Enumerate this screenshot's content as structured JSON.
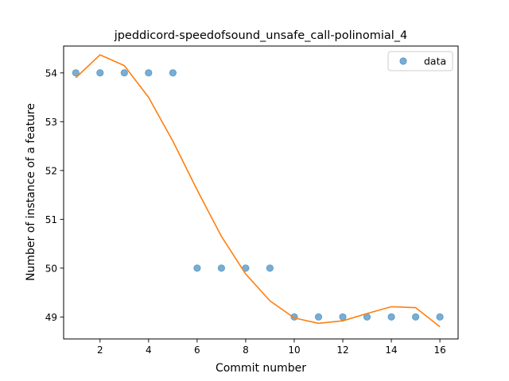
{
  "chart_data": {
    "type": "scatter",
    "title": "jpeddicord-speedofsound_unsafe_call-polinomial_4",
    "xlabel": "Commit number",
    "ylabel": "Number of instance of a feature",
    "xlim": [
      0.5,
      16.75
    ],
    "ylim": [
      48.55,
      54.55
    ],
    "xticks": [
      2,
      4,
      6,
      8,
      10,
      12,
      14,
      16
    ],
    "yticks": [
      49,
      50,
      51,
      52,
      53,
      54
    ],
    "grid": false,
    "legend_position": "top-right",
    "series": [
      {
        "name": "data",
        "kind": "points",
        "color": "#1f77b4",
        "x": [
          1,
          2,
          3,
          4,
          5,
          6,
          7,
          8,
          9,
          10,
          11,
          12,
          13,
          14,
          15,
          16
        ],
        "y": [
          54,
          54,
          54,
          54,
          54,
          50,
          50,
          50,
          50,
          49,
          49,
          49,
          49,
          49,
          49,
          49
        ]
      },
      {
        "kind": "line",
        "color": "#ff7f0e",
        "x": [
          1,
          2,
          3,
          4,
          5,
          6,
          7,
          8,
          9,
          10,
          11,
          12,
          13,
          14,
          15,
          16
        ],
        "y": [
          53.9,
          54.37,
          54.15,
          53.5,
          52.6,
          51.6,
          50.65,
          49.88,
          49.33,
          48.98,
          48.87,
          48.92,
          49.07,
          49.21,
          49.19,
          48.8
        ]
      }
    ]
  }
}
